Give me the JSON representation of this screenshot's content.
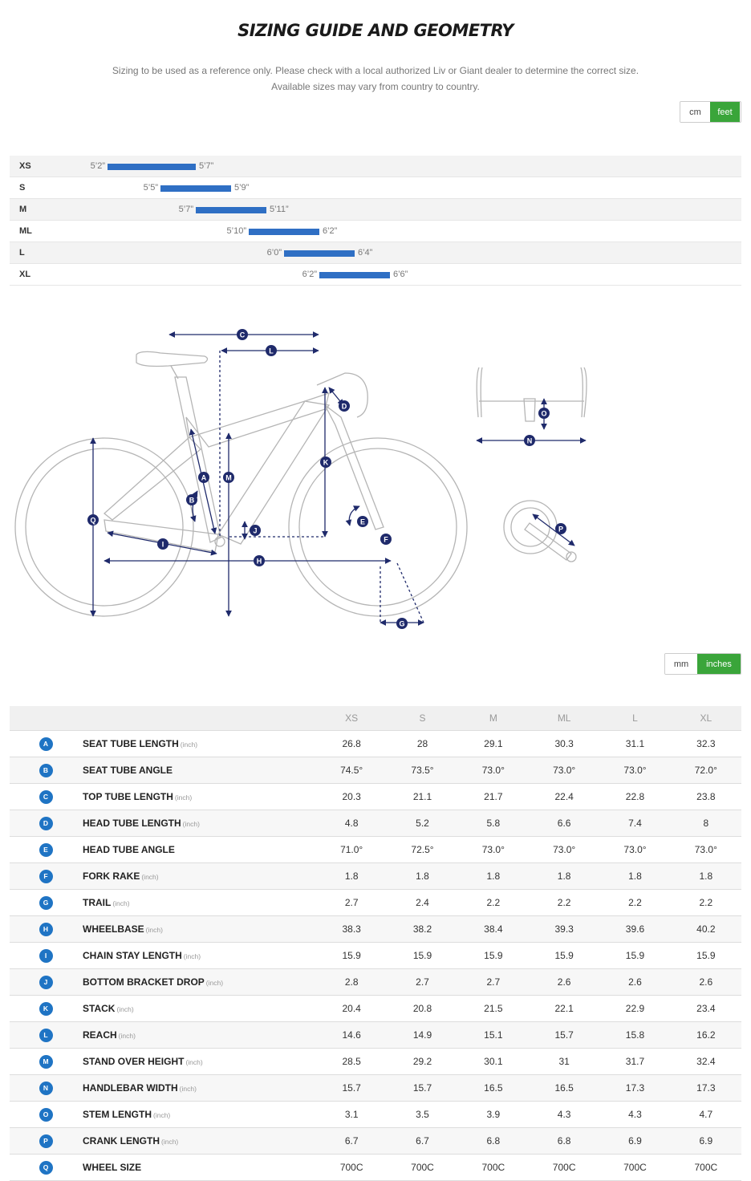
{
  "title": "SIZING GUIDE AND GEOMETRY",
  "subtitle_line1": "Sizing to be used as a reference only. Please check with a local authorized Liv or Giant dealer to determine the correct size.",
  "subtitle_line2": "Available sizes may vary from country to country.",
  "height_unit_toggle": {
    "options": [
      "cm",
      "feet"
    ],
    "selected": "feet"
  },
  "geometry_unit_toggle": {
    "options": [
      "mm",
      "inches"
    ],
    "selected": "inches"
  },
  "accent_colors": {
    "bar": "#2f6fc4",
    "toggle_active": "#3aa53a",
    "badge": "#1f74c4",
    "diagram_line": "#1f2a6b"
  },
  "rider_height": [
    {
      "size": "XS",
      "min": "5’2”",
      "max": "5’7”",
      "min_in": 62,
      "max_in": 67
    },
    {
      "size": "S",
      "min": "5’5”",
      "max": "5’9”",
      "min_in": 65,
      "max_in": 69
    },
    {
      "size": "M",
      "min": "5’7”",
      "max": "5’11”",
      "min_in": 67,
      "max_in": 71
    },
    {
      "size": "ML",
      "min": "5’10”",
      "max": "6’2”",
      "min_in": 70,
      "max_in": 74
    },
    {
      "size": "L",
      "min": "6’0”",
      "max": "6’4”",
      "min_in": 72,
      "max_in": 76
    },
    {
      "size": "XL",
      "min": "6’2”",
      "max": "6’6”",
      "min_in": 74,
      "max_in": 78
    }
  ],
  "diagram_labels": [
    "A",
    "B",
    "C",
    "D",
    "E",
    "F",
    "G",
    "H",
    "I",
    "J",
    "K",
    "L",
    "M",
    "N",
    "O",
    "P",
    "Q"
  ],
  "geometry": {
    "sizes": [
      "XS",
      "S",
      "M",
      "ML",
      "L",
      "XL"
    ],
    "rows": [
      {
        "key": "A",
        "label": "SEAT TUBE LENGTH",
        "unit": "(inch)",
        "values": [
          "26.8",
          "28",
          "29.1",
          "30.3",
          "31.1",
          "32.3"
        ]
      },
      {
        "key": "B",
        "label": "SEAT TUBE ANGLE",
        "unit": "",
        "values": [
          "74.5°",
          "73.5°",
          "73.0°",
          "73.0°",
          "73.0°",
          "72.0°"
        ]
      },
      {
        "key": "C",
        "label": "TOP TUBE LENGTH",
        "unit": "(inch)",
        "values": [
          "20.3",
          "21.1",
          "21.7",
          "22.4",
          "22.8",
          "23.8"
        ]
      },
      {
        "key": "D",
        "label": "HEAD TUBE LENGTH",
        "unit": "(inch)",
        "values": [
          "4.8",
          "5.2",
          "5.8",
          "6.6",
          "7.4",
          "8"
        ]
      },
      {
        "key": "E",
        "label": "HEAD TUBE ANGLE",
        "unit": "",
        "values": [
          "71.0°",
          "72.5°",
          "73.0°",
          "73.0°",
          "73.0°",
          "73.0°"
        ]
      },
      {
        "key": "F",
        "label": "FORK RAKE",
        "unit": "(inch)",
        "values": [
          "1.8",
          "1.8",
          "1.8",
          "1.8",
          "1.8",
          "1.8"
        ]
      },
      {
        "key": "G",
        "label": "TRAIL",
        "unit": "(inch)",
        "values": [
          "2.7",
          "2.4",
          "2.2",
          "2.2",
          "2.2",
          "2.2"
        ]
      },
      {
        "key": "H",
        "label": "WHEELBASE",
        "unit": "(inch)",
        "values": [
          "38.3",
          "38.2",
          "38.4",
          "39.3",
          "39.6",
          "40.2"
        ]
      },
      {
        "key": "I",
        "label": "CHAIN STAY LENGTH",
        "unit": "(inch)",
        "values": [
          "15.9",
          "15.9",
          "15.9",
          "15.9",
          "15.9",
          "15.9"
        ]
      },
      {
        "key": "J",
        "label": "BOTTOM BRACKET DROP",
        "unit": "(inch)",
        "values": [
          "2.8",
          "2.7",
          "2.7",
          "2.6",
          "2.6",
          "2.6"
        ]
      },
      {
        "key": "K",
        "label": "STACK",
        "unit": "(inch)",
        "values": [
          "20.4",
          "20.8",
          "21.5",
          "22.1",
          "22.9",
          "23.4"
        ]
      },
      {
        "key": "L",
        "label": "REACH",
        "unit": "(inch)",
        "values": [
          "14.6",
          "14.9",
          "15.1",
          "15.7",
          "15.8",
          "16.2"
        ]
      },
      {
        "key": "M",
        "label": "STAND OVER HEIGHT",
        "unit": "(inch)",
        "values": [
          "28.5",
          "29.2",
          "30.1",
          "31",
          "31.7",
          "32.4"
        ]
      },
      {
        "key": "N",
        "label": "HANDLEBAR WIDTH",
        "unit": "(inch)",
        "values": [
          "15.7",
          "15.7",
          "16.5",
          "16.5",
          "17.3",
          "17.3"
        ]
      },
      {
        "key": "O",
        "label": "STEM LENGTH",
        "unit": "(inch)",
        "values": [
          "3.1",
          "3.5",
          "3.9",
          "4.3",
          "4.3",
          "4.7"
        ]
      },
      {
        "key": "P",
        "label": "CRANK LENGTH",
        "unit": "(inch)",
        "values": [
          "6.7",
          "6.7",
          "6.8",
          "6.8",
          "6.9",
          "6.9"
        ]
      },
      {
        "key": "Q",
        "label": "WHEEL SIZE",
        "unit": "",
        "values": [
          "700C",
          "700C",
          "700C",
          "700C",
          "700C",
          "700C"
        ]
      }
    ]
  }
}
